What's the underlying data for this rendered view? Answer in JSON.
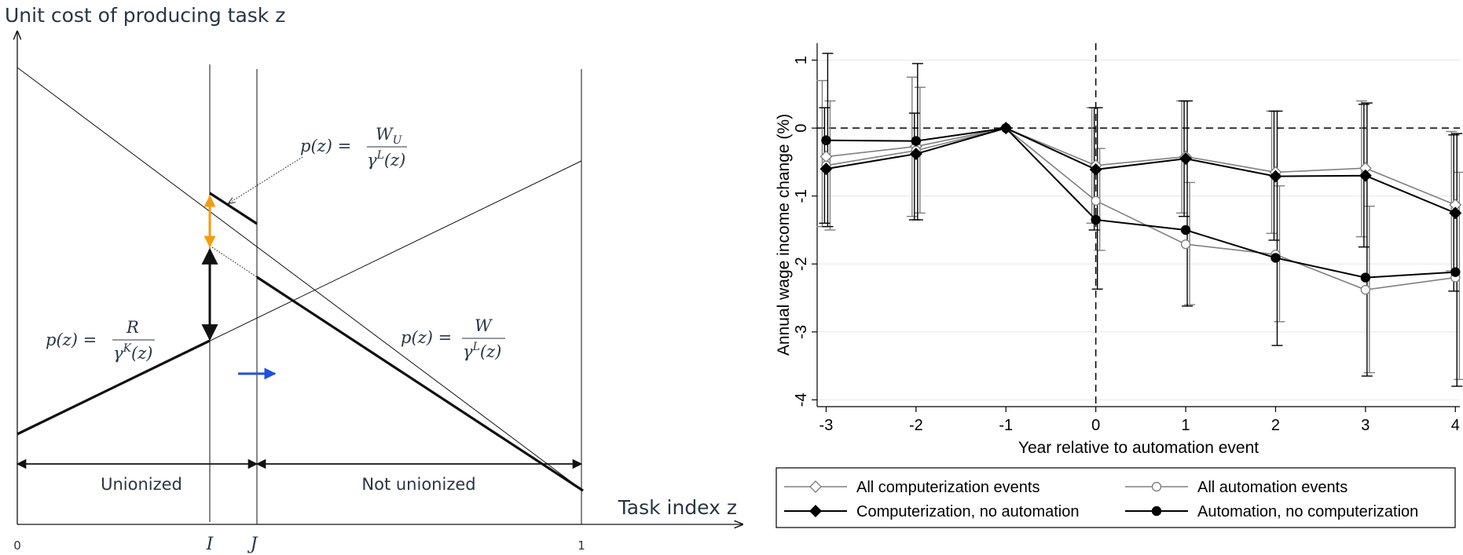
{
  "left_figure": {
    "y_axis_label": "Unit cost of producing task z",
    "x_axis_label": "Task index z",
    "ticks": {
      "zero": "0",
      "one": "1",
      "I": "I",
      "J": "J"
    },
    "regions": {
      "unionized": "Unionized",
      "not_unionized": "Not unionized"
    },
    "formulas": {
      "wu": {
        "lhs": "p(z) =",
        "num": "W",
        "num_sub": "U",
        "den": "γ",
        "den_sup": "L",
        "den_tail": "(z)"
      },
      "r": {
        "lhs": "p(z) =",
        "num": "R",
        "den": "γ",
        "den_sup": "K",
        "den_tail": "(z)"
      },
      "w": {
        "lhs": "p(z) =",
        "num": "W",
        "den": "γ",
        "den_sup": "L",
        "den_tail": "(z)"
      }
    },
    "colors": {
      "orange_arrow": "#f39c12",
      "blue_arrow": "#1f4fe0",
      "lines": "#111111",
      "text": "#2a3544"
    }
  },
  "chart_data": {
    "type": "line",
    "xlabel": "Year relative to automation event",
    "ylabel": "Annual wage income change (%)",
    "x": [
      -3,
      -2,
      -1,
      0,
      1,
      2,
      3,
      4
    ],
    "xlim": [
      -3.1,
      4.05
    ],
    "ylim": [
      -4.1,
      1.25
    ],
    "yticks": [
      1,
      0,
      -1,
      -2,
      -3,
      -4
    ],
    "ytick_labels": [
      "1",
      "0",
      "-1",
      "-2",
      "-3",
      "-4"
    ],
    "xtick_labels": [
      "-3",
      "-2",
      "-1",
      "0",
      "1",
      "2",
      "3",
      "4"
    ],
    "grid": true,
    "reference_lines": {
      "y": 0,
      "x": 0
    },
    "legend_placement": "below",
    "series": [
      {
        "name": "All computerization events",
        "color": "#808080",
        "marker": "diamond-open",
        "values": [
          -0.42,
          -0.27,
          0,
          -0.55,
          -0.42,
          -0.65,
          -0.59,
          -1.13
        ],
        "ci_low": [
          -1.45,
          -1.3,
          0,
          -1.4,
          -1.25,
          -1.55,
          -1.6,
          -2.1
        ],
        "ci_high": [
          0.7,
          0.75,
          0,
          0.3,
          0.4,
          0.25,
          0.4,
          -0.05
        ]
      },
      {
        "name": "All automation events",
        "color": "#808080",
        "marker": "circle-open",
        "values": [
          -0.55,
          -0.33,
          0,
          -1.07,
          -1.71,
          -1.86,
          -2.38,
          -2.2
        ],
        "ci_low": [
          -1.5,
          -1.25,
          0,
          -1.8,
          -2.6,
          -2.85,
          -3.6,
          -3.7
        ],
        "ci_high": [
          0.4,
          0.6,
          0,
          -0.3,
          -0.8,
          -0.85,
          -1.15,
          -0.65
        ]
      },
      {
        "name": "Computerization, no automation",
        "color": "#000000",
        "marker": "diamond-filled",
        "values": [
          -0.6,
          -0.38,
          0,
          -0.61,
          -0.45,
          -0.71,
          -0.7,
          -1.25
        ],
        "ci_low": [
          -1.4,
          -1.35,
          0,
          -1.5,
          -1.3,
          -1.65,
          -1.75,
          -2.4
        ],
        "ci_high": [
          0.3,
          0.22,
          0,
          0.3,
          0.4,
          0.25,
          0.35,
          -0.1
        ]
      },
      {
        "name": "Automation, no computerization",
        "color": "#000000",
        "marker": "circle-filled",
        "values": [
          -0.18,
          -0.19,
          0,
          -1.35,
          -1.5,
          -1.91,
          -2.2,
          -2.12
        ],
        "ci_low": [
          -1.45,
          -1.35,
          0,
          -2.37,
          -2.62,
          -3.2,
          -3.65,
          -3.8
        ],
        "ci_high": [
          1.1,
          0.95,
          0,
          0.3,
          0.4,
          0.25,
          0.37,
          -0.08
        ]
      }
    ]
  }
}
